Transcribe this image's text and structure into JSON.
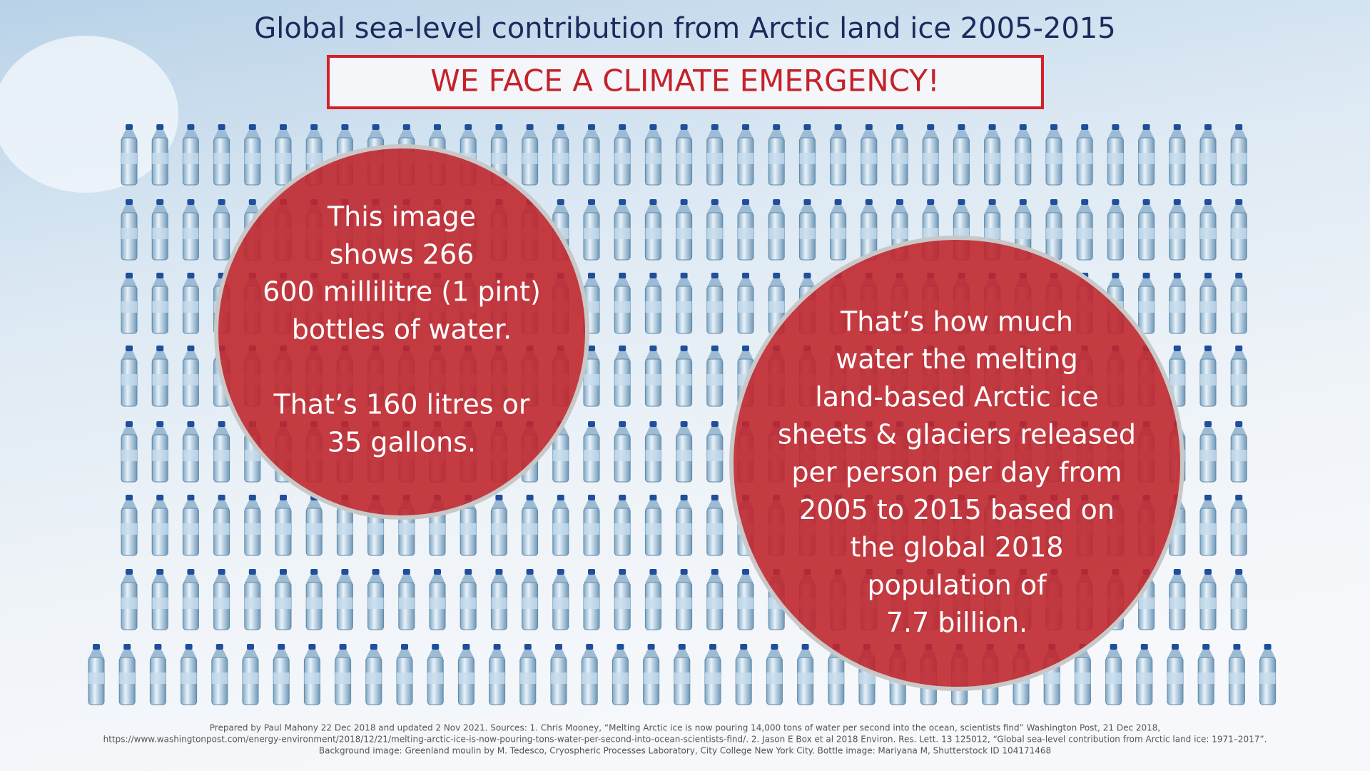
{
  "header": {
    "title": "Global sea-level contribution from Arctic land ice 2005-2015",
    "banner": "WE FACE A CLIMATE EMERGENCY!"
  },
  "left_circle": {
    "lines": [
      "This image",
      "shows 266",
      "600 millilitre (1 pint)",
      "bottles of water.",
      "That’s 160 litres or",
      "35 gallons."
    ]
  },
  "right_circle": {
    "lines": [
      "That’s how much",
      "water the melting",
      "land-based Arctic ice",
      "sheets & glaciers released",
      "per person per day from",
      "2005 to 2015 based on",
      "the global 2018",
      "population of",
      "7.7 billion."
    ]
  },
  "footer": {
    "lines": [
      "Prepared by Paul Mahony 22 Dec 2018 and updated 2 Nov 2021. Sources: 1. Chris Mooney, “Melting Arctic ice is now pouring 14,000 tons of water per second into the ocean, scientists find” Washington Post, 21 Dec 2018,",
      "https://www.washingtonpost.com/energy-environment/2018/12/21/melting-arctic-ice-is-now-pouring-tons-water-per-second-into-ocean-scientists-find/. 2. Jason E Box et al 2018 Environ. Res. Lett. 13 125012, “Global sea-level contribution from Arctic land ice: 1971–2017”.",
      "Background image: Greenland moulin by M. Tedesco, Cryospheric Processes Laboratory, City College New York City. Bottle image: Mariyana M, Shutterstock ID 104171468"
    ]
  }
}
